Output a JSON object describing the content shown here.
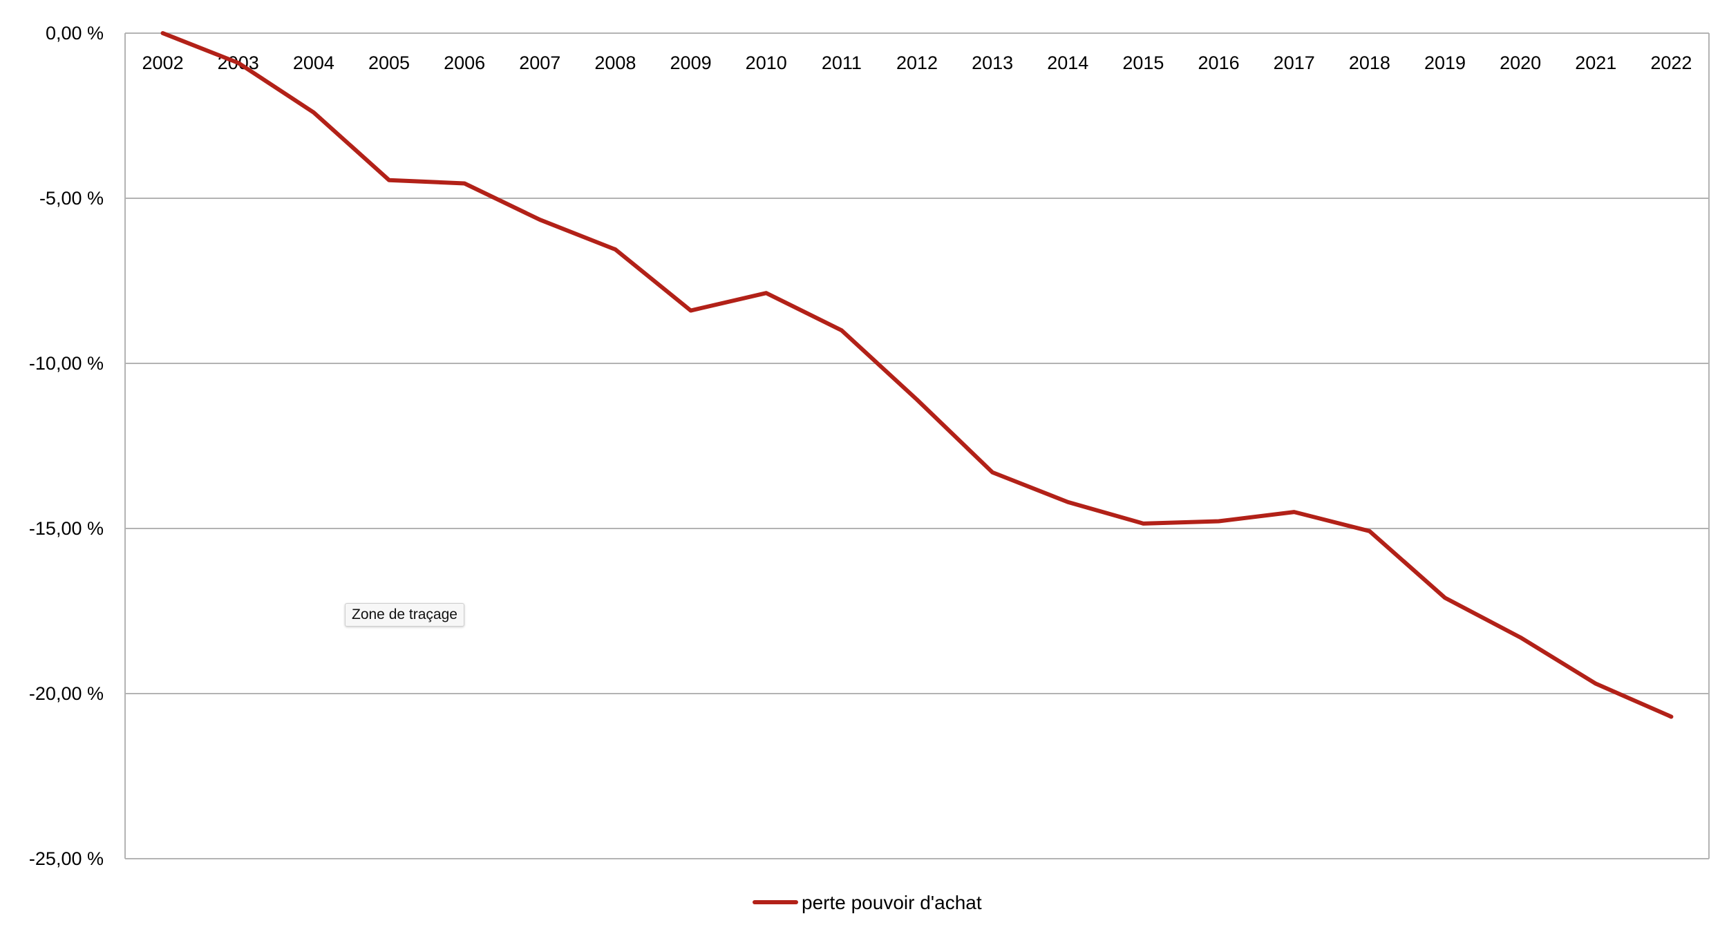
{
  "chart_data": {
    "type": "line",
    "title": "",
    "xlabel": "",
    "ylabel": "",
    "categories": [
      "2002",
      "2003",
      "2004",
      "2005",
      "2006",
      "2007",
      "2008",
      "2009",
      "2010",
      "2011",
      "2012",
      "2013",
      "2014",
      "2015",
      "2016",
      "2017",
      "2018",
      "2019",
      "2020",
      "2021",
      "2022"
    ],
    "series": [
      {
        "name": "perte pouvoir d'achat",
        "color": "#B22118",
        "values": [
          0,
          -0.9,
          -2.4,
          -4.45,
          -4.55,
          -5.65,
          -6.55,
          -8.4,
          -7.87,
          -9.0,
          -11.1,
          -13.3,
          -14.2,
          -14.85,
          -14.78,
          -14.5,
          -15.08,
          -17.1,
          -18.3,
          -19.7,
          -20.7
        ]
      }
    ],
    "ylim": [
      -25,
      0
    ],
    "yticks": [
      0,
      -5,
      -10,
      -15,
      -20,
      -25
    ],
    "ytick_labels": [
      "0,00 %",
      "-5,00 %",
      "-10,00 %",
      "-15,00 %",
      "-20,00 %",
      "-25,00 %"
    ],
    "grid": true,
    "legend_position": "bottom"
  },
  "tooltip": "Zone de traçage"
}
